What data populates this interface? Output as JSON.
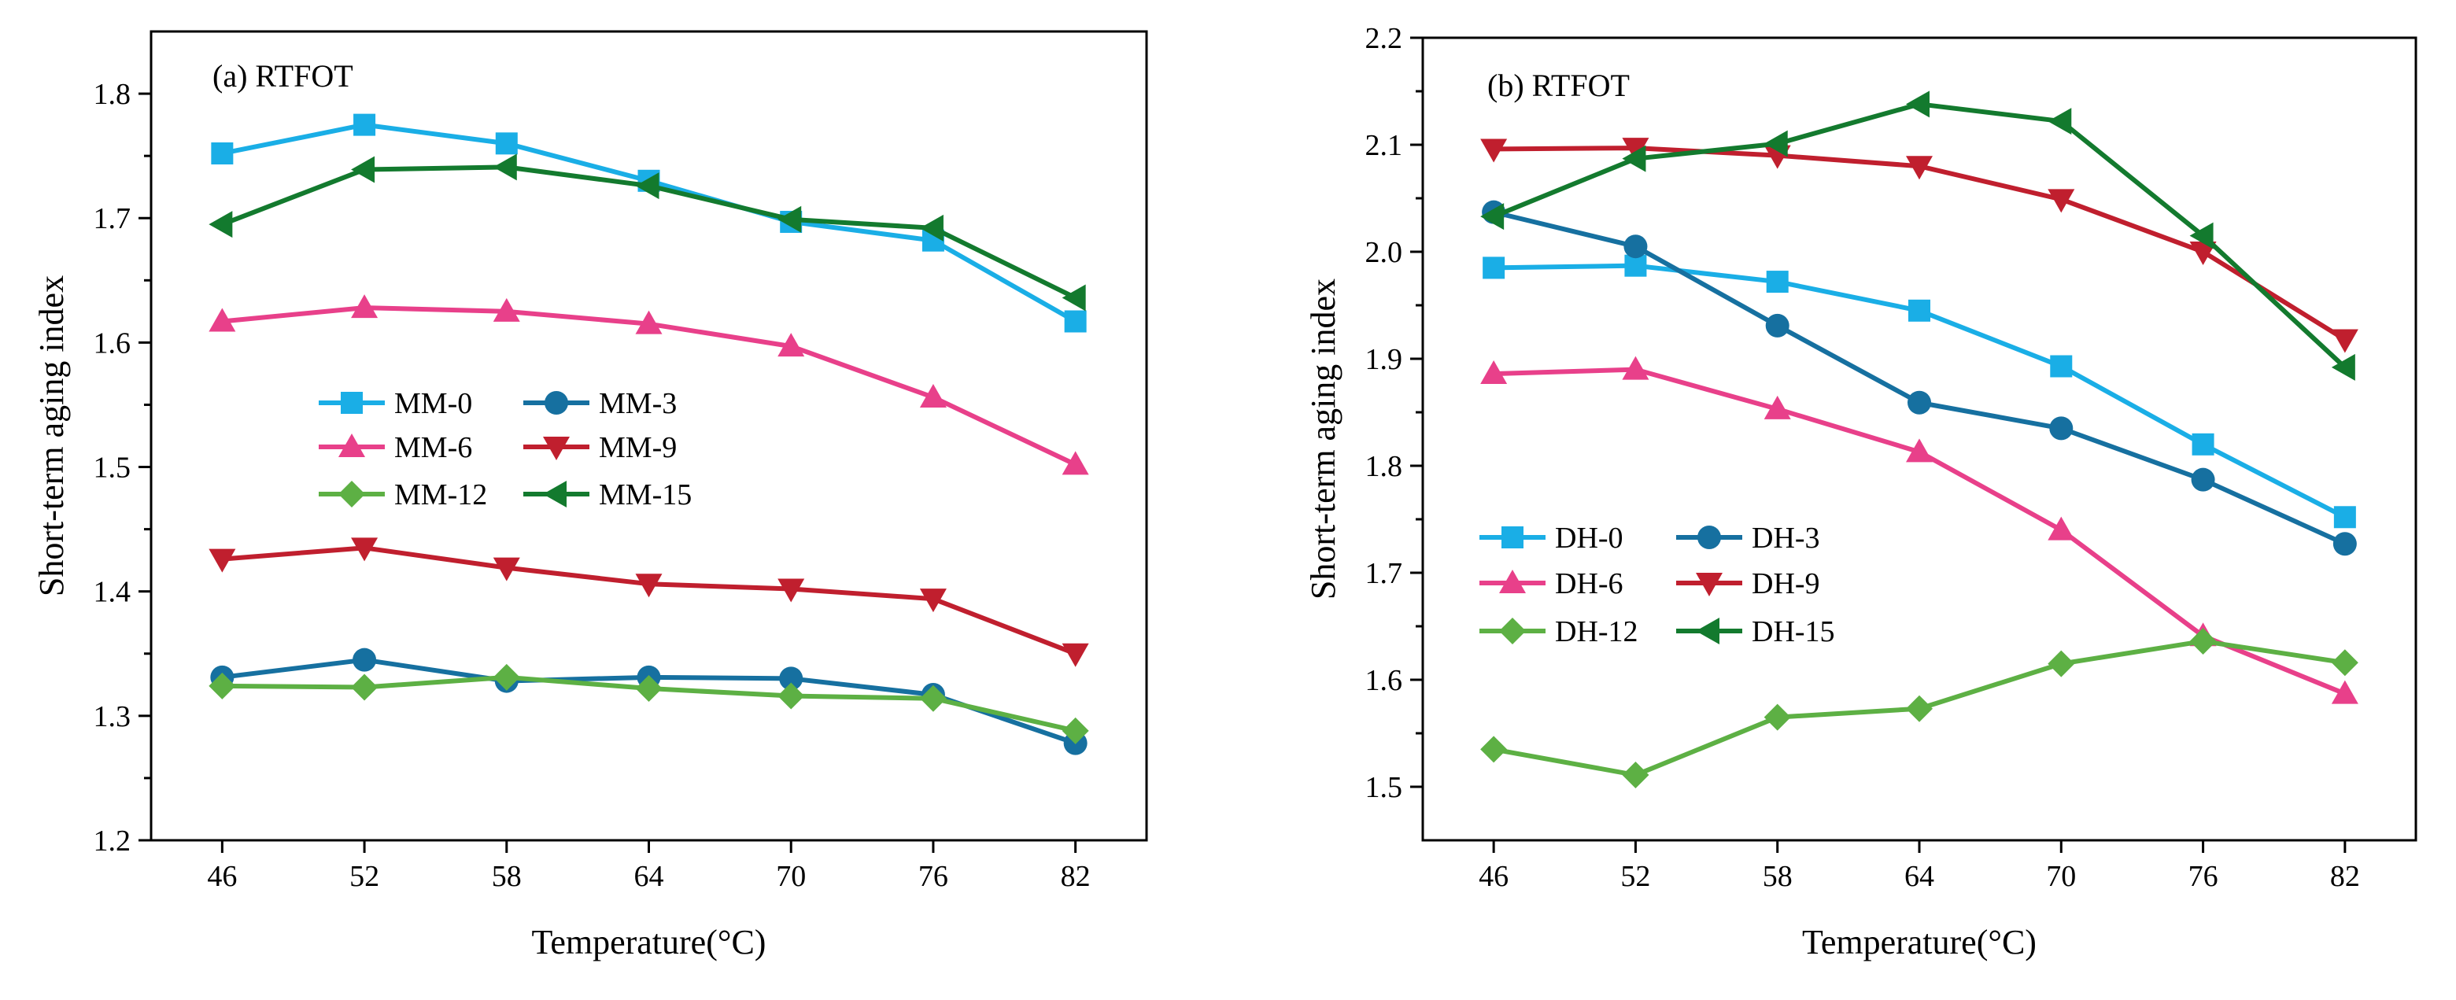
{
  "chart_data": [
    {
      "type": "line",
      "panel_label": "(a) RTFOT",
      "xlabel": "Temperature(°C)",
      "ylabel": "Short-term aging index",
      "categories": [
        "46",
        "52",
        "58",
        "64",
        "70",
        "76",
        "82"
      ],
      "x": [
        46,
        52,
        58,
        64,
        70,
        76,
        82
      ],
      "xlim": [
        43,
        85
      ],
      "ylim": [
        1.2,
        1.85
      ],
      "yticks": [
        "1.2",
        "1.3",
        "1.4",
        "1.5",
        "1.6",
        "1.7",
        "1.8"
      ],
      "legend_position": "center-left",
      "series": [
        {
          "name": "MM-0",
          "marker": "square",
          "color": "#1AAEE6",
          "values": [
            1.752,
            1.775,
            1.76,
            1.73,
            1.697,
            1.682,
            1.617
          ]
        },
        {
          "name": "MM-3",
          "marker": "circle",
          "color": "#1670A0",
          "values": [
            1.331,
            1.345,
            1.328,
            1.331,
            1.33,
            1.317,
            1.278
          ]
        },
        {
          "name": "MM-6",
          "marker": "triangle-up",
          "color": "#E8408A",
          "values": [
            1.617,
            1.628,
            1.625,
            1.615,
            1.597,
            1.556,
            1.502
          ]
        },
        {
          "name": "MM-9",
          "marker": "triangle-down",
          "color": "#C01F2E",
          "values": [
            1.426,
            1.435,
            1.419,
            1.406,
            1.402,
            1.394,
            1.35
          ]
        },
        {
          "name": "MM-12",
          "marker": "diamond",
          "color": "#5DB044",
          "values": [
            1.324,
            1.323,
            1.331,
            1.322,
            1.316,
            1.314,
            1.288
          ]
        },
        {
          "name": "MM-15",
          "marker": "triangle-left",
          "color": "#137A2E",
          "values": [
            1.695,
            1.739,
            1.741,
            1.726,
            1.699,
            1.692,
            1.636
          ]
        }
      ]
    },
    {
      "type": "line",
      "panel_label": "(b) RTFOT",
      "xlabel": "Temperature(°C)",
      "ylabel": "Short-term aging index",
      "categories": [
        "46",
        "52",
        "58",
        "64",
        "70",
        "76",
        "82"
      ],
      "x": [
        46,
        52,
        58,
        64,
        70,
        76,
        82
      ],
      "xlim": [
        43,
        85
      ],
      "ylim": [
        1.45,
        2.2
      ],
      "yticks": [
        "1.5",
        "1.6",
        "1.7",
        "1.8",
        "1.9",
        "2.0",
        "2.1",
        "2.2"
      ],
      "legend_position": "bottom-left",
      "series": [
        {
          "name": "DH-0",
          "marker": "square",
          "color": "#1AAEE6",
          "values": [
            1.985,
            1.987,
            1.972,
            1.945,
            1.893,
            1.82,
            1.752
          ]
        },
        {
          "name": "DH-3",
          "marker": "circle",
          "color": "#1670A0",
          "values": [
            2.037,
            2.005,
            1.931,
            1.859,
            1.835,
            1.787,
            1.727
          ]
        },
        {
          "name": "DH-6",
          "marker": "triangle-up",
          "color": "#E8408A",
          "values": [
            1.886,
            1.89,
            1.853,
            1.813,
            1.74,
            1.641,
            1.587
          ]
        },
        {
          "name": "DH-9",
          "marker": "triangle-down",
          "color": "#C01F2E",
          "values": [
            2.096,
            2.097,
            2.09,
            2.08,
            2.049,
            2.0,
            1.918
          ]
        },
        {
          "name": "DH-12",
          "marker": "diamond",
          "color": "#5DB044",
          "values": [
            1.535,
            1.511,
            1.565,
            1.573,
            1.615,
            1.636,
            1.616
          ]
        },
        {
          "name": "DH-15",
          "marker": "triangle-left",
          "color": "#137A2E",
          "values": [
            2.033,
            2.087,
            2.101,
            2.138,
            2.122,
            2.015,
            1.892
          ]
        }
      ]
    }
  ]
}
